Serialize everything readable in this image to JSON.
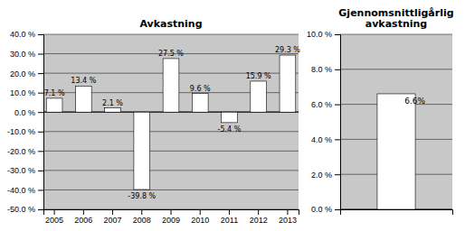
{
  "chart_data": [
    {
      "type": "bar",
      "title": "Avkastning",
      "categories": [
        "2005",
        "2006",
        "2007",
        "2008",
        "2009",
        "2010",
        "2011",
        "2012",
        "2013"
      ],
      "values": [
        7.1,
        13.4,
        2.1,
        -39.8,
        27.5,
        9.6,
        -5.4,
        15.9,
        29.3
      ],
      "value_labels": [
        "7.1 %",
        "13.4 %",
        "2.1 %",
        "-39.8 %",
        "27.5 %",
        "9.6 %",
        "-5.4 %",
        "15.9 %",
        "29.3 %"
      ],
      "data_labels": true,
      "color": "#ffffff",
      "ylim": [
        -50.0,
        40.0
      ],
      "yticks": [
        {
          "value": -50.0,
          "label": "-50.0 %"
        },
        {
          "value": -40.0,
          "label": "-40.0 %"
        },
        {
          "value": -30.0,
          "label": "-30.0 %"
        },
        {
          "value": -20.0,
          "label": "-20.0 %"
        },
        {
          "value": -10.0,
          "label": "-10.0 %"
        },
        {
          "value": 0.0,
          "label": "0.0 %"
        },
        {
          "value": 10.0,
          "label": "10.0 %"
        },
        {
          "value": 20.0,
          "label": "20.0 %"
        },
        {
          "value": 30.0,
          "label": "30.0 %"
        },
        {
          "value": 40.0,
          "label": "40.0 %"
        }
      ],
      "grid": true
    },
    {
      "type": "bar",
      "title": "Gjennomsnittligårlig\navkastning",
      "categories": [
        null
      ],
      "values": [
        6.6
      ],
      "value_labels": [
        "6.6%"
      ],
      "data_labels": true,
      "color": "#ffffff",
      "ylim": [
        0.0,
        10.0
      ],
      "yticks": [
        {
          "value": 0.0,
          "label": "0.0 %"
        },
        {
          "value": 2.0,
          "label": "2.0 %"
        },
        {
          "value": 4.0,
          "label": "4.0 %"
        },
        {
          "value": 6.0,
          "label": "6.0 %"
        },
        {
          "value": 8.0,
          "label": "8.0 %"
        },
        {
          "value": 10.0,
          "label": "10.0 %"
        }
      ],
      "grid": true,
      "tick_labels": "y"
    }
  ]
}
